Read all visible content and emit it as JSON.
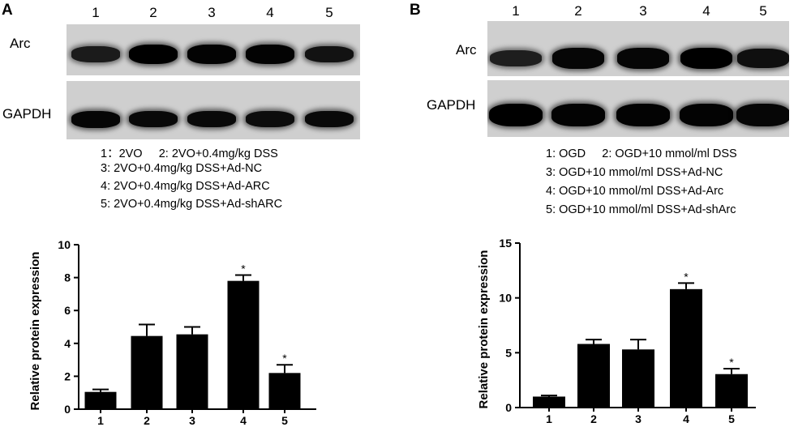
{
  "panels": [
    {
      "letter": "A",
      "lane_numbers": [
        "1",
        "2",
        "3",
        "4",
        "5"
      ],
      "blots": [
        {
          "label": "Arc",
          "band_intensity": [
            0.55,
            1.0,
            0.95,
            0.95,
            0.7
          ]
        },
        {
          "label": "GAPDH",
          "band_intensity": [
            0.9,
            0.85,
            0.85,
            0.8,
            0.85
          ]
        }
      ],
      "legend": [
        "1：2VO     2: 2VO+0.4mg/kg DSS",
        "3: 2VO+0.4mg/kg DSS+Ad-NC",
        "4: 2VO+0.4mg/kg DSS+Ad-ARC",
        "5: 2VO+0.4mg/kg DSS+Ad-shARC"
      ]
    },
    {
      "letter": "B",
      "lane_numbers": [
        "1",
        "2",
        "3",
        "4",
        "5"
      ],
      "blots": [
        {
          "label": "Arc",
          "band_intensity": [
            0.5,
            0.9,
            0.9,
            1.0,
            0.75
          ]
        },
        {
          "label": "GAPDH",
          "band_intensity": [
            1.0,
            0.95,
            0.95,
            0.95,
            0.9
          ]
        }
      ],
      "legend": [
        "1: OGD     2: OGD+10 mmol/ml DSS",
        "3: OGD+10 mmol/ml DSS+Ad-NC",
        "4: OGD+10 mmol/ml DSS+Ad-Arc",
        "5: OGD+10 mmol/ml DSS+Ad-shArc"
      ]
    }
  ],
  "chart_data": [
    {
      "type": "bar",
      "panel": "A",
      "categories": [
        "1",
        "2",
        "3",
        "4",
        "5"
      ],
      "values": [
        1.05,
        4.45,
        4.55,
        7.8,
        2.2
      ],
      "errors": [
        0.15,
        0.7,
        0.45,
        0.35,
        0.5
      ],
      "significance": [
        "",
        "",
        "",
        "*",
        "*"
      ],
      "ylabel": "Relative protein expression",
      "xlabel": "",
      "ylim": [
        0,
        10
      ],
      "yticks": [
        0,
        2,
        4,
        6,
        8,
        10
      ],
      "bar_color": "#000000"
    },
    {
      "type": "bar",
      "panel": "B",
      "categories": [
        "1",
        "2",
        "3",
        "4",
        "5"
      ],
      "values": [
        1.0,
        5.8,
        5.3,
        10.8,
        3.05
      ],
      "errors": [
        0.1,
        0.4,
        0.9,
        0.55,
        0.5
      ],
      "significance": [
        "",
        "",
        "",
        "*",
        "*"
      ],
      "ylabel": "Relative protein expression",
      "xlabel": "",
      "ylim": [
        0,
        15
      ],
      "yticks": [
        0,
        5,
        10,
        15
      ],
      "bar_color": "#000000"
    }
  ]
}
